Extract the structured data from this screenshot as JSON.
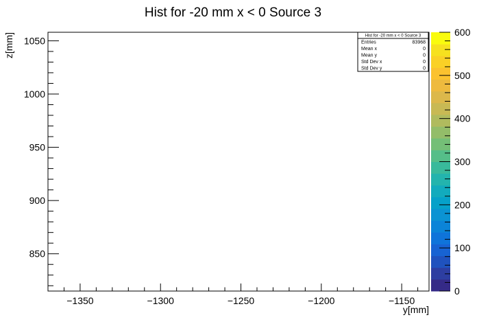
{
  "chart_data": {
    "type": "heatmap",
    "title": "Hist for -20 mm x < 0 Source 3",
    "xlabel": "y[mm]",
    "ylabel": "z[mm]",
    "xlim": [
      -1370,
      -1133
    ],
    "ylim": [
      815,
      1058
    ],
    "x_ticks": [
      -1350,
      -1300,
      -1250,
      -1200,
      -1150
    ],
    "x_tick_labels": [
      "−1350",
      "−1300",
      "−1250",
      "−1200",
      "−1150"
    ],
    "y_ticks": [
      850,
      900,
      950,
      1000,
      1050
    ],
    "y_tick_labels": [
      "850",
      "900",
      "950",
      "1000",
      "1050"
    ],
    "colorbar": {
      "range": [
        0,
        600
      ],
      "ticks": [
        0,
        100,
        200,
        300,
        400,
        500,
        600
      ],
      "tick_labels": [
        "0",
        "100",
        "200",
        "300",
        "400",
        "500",
        "600"
      ],
      "colors": [
        "#352a87",
        "#2d3ea1",
        "#1f52be",
        "#1763d3",
        "#0f74da",
        "#0b84d8",
        "#0b93d3",
        "#06a1c9",
        "#12abbd",
        "#23b4ad",
        "#39ba9b",
        "#55be89",
        "#74bf77",
        "#93bd69",
        "#b0bb5e",
        "#c8b954",
        "#dcb84b",
        "#eeba3e",
        "#fbc22f",
        "#fad126",
        "#f6e11f",
        "#f9fb0e"
      ],
      "grid": false
    },
    "stats_box": {
      "title": "Hist for -20 mm x < 0 Source 3",
      "rows": [
        {
          "label": "Entries",
          "value": "83968"
        },
        {
          "label": "Mean x",
          "value": "0"
        },
        {
          "label": "Mean y",
          "value": "0"
        },
        {
          "label": "Std Dev x",
          "value": "0"
        },
        {
          "label": "Std Dev y",
          "value": "0"
        }
      ],
      "placement": "top-right"
    },
    "grid": false,
    "legend": "none"
  }
}
